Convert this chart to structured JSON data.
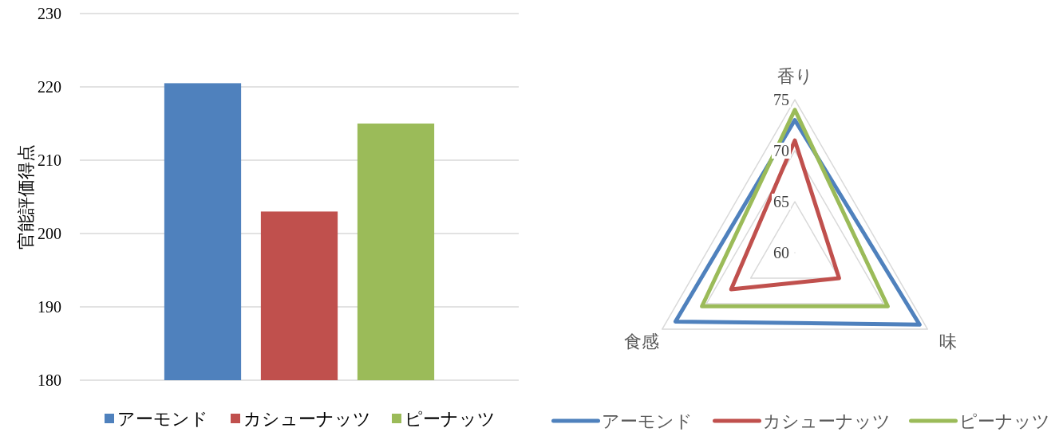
{
  "chart_data": [
    {
      "type": "bar",
      "categories": [
        null
      ],
      "ylabel": "官能評価得点",
      "ylim": [
        180,
        230
      ],
      "yticks": [
        180,
        190,
        200,
        210,
        220,
        230
      ],
      "grid": "y",
      "legend": "bottom",
      "series": [
        {
          "name": "アーモンド",
          "color": "#4f81bd",
          "values": [
            220.5
          ]
        },
        {
          "name": "カシューナッツ",
          "color": "#c0504d",
          "values": [
            203
          ]
        },
        {
          "name": "ピーナッツ",
          "color": "#9bbb59",
          "values": [
            215
          ]
        }
      ]
    },
    {
      "type": "radar",
      "categories": [
        "香り",
        "味",
        "食感"
      ],
      "ylim": [
        60,
        75
      ],
      "yticks": [
        60,
        65,
        70,
        75
      ],
      "grid": true,
      "legend": "bottom",
      "marker": "none",
      "series": [
        {
          "name": "アーモンド",
          "color": "#4f81bd",
          "values": [
            73,
            74.1,
            73.5
          ]
        },
        {
          "name": "カシューナッツ",
          "color": "#c0504d",
          "values": [
            71,
            65,
            67.2
          ]
        },
        {
          "name": "ピーナッツ",
          "color": "#9bbb59",
          "values": [
            74,
            70.5,
            70.5
          ]
        }
      ]
    }
  ]
}
